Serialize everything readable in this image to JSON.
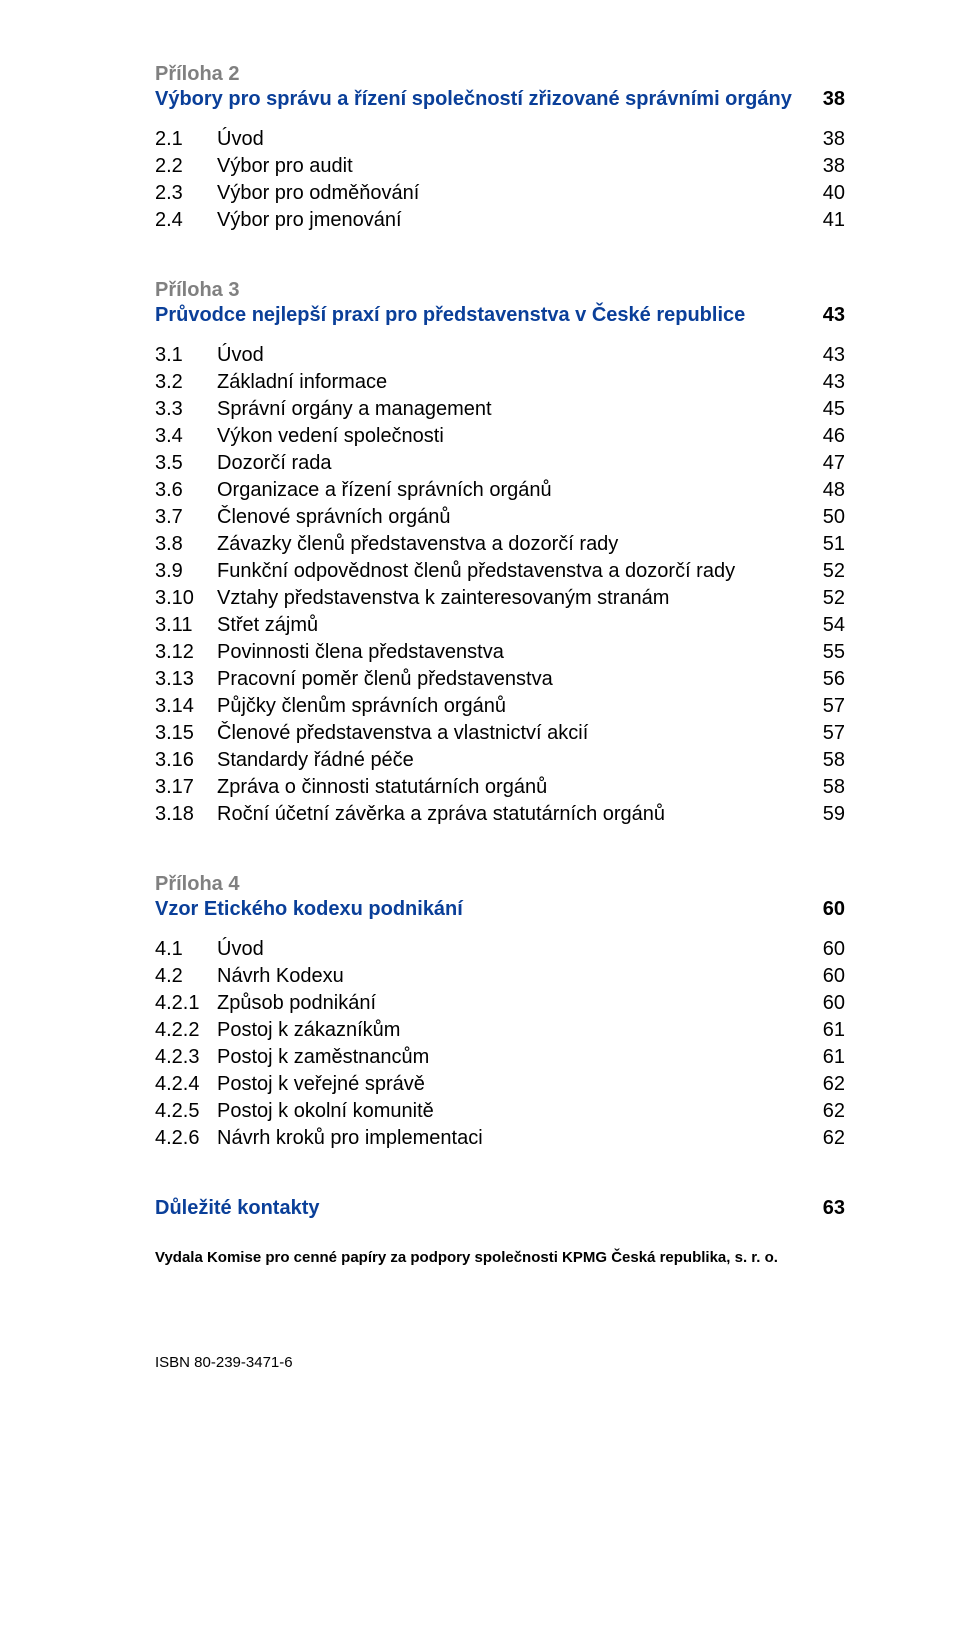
{
  "colors": {
    "heading_blue": "#0a3f99",
    "heading_grey": "#808080",
    "text_black": "#000000",
    "background": "#ffffff"
  },
  "typography": {
    "font_family": "Arial, Helvetica, sans-serif",
    "heading_fontsize_pt": 15,
    "body_fontsize_pt": 15,
    "footer_fontsize_pt": 11
  },
  "sections": [
    {
      "grey": "Příloha 2",
      "blue": "Výbory pro správu a řízení společností zřizované správními orgány",
      "page": "38",
      "items": [
        {
          "num": "2.1",
          "label": "Úvod",
          "page": "38"
        },
        {
          "num": "2.2",
          "label": "Výbor pro audit",
          "page": "38"
        },
        {
          "num": "2.3",
          "label": "Výbor pro odměňování",
          "page": "40"
        },
        {
          "num": "2.4",
          "label": "Výbor pro jmenování",
          "page": "41"
        }
      ]
    },
    {
      "grey": "Příloha 3",
      "blue": "Průvodce nejlepší praxí pro představenstva v České republice",
      "page": "43",
      "items": [
        {
          "num": "3.1",
          "label": "Úvod",
          "page": "43"
        },
        {
          "num": "3.2",
          "label": "Základní informace",
          "page": "43"
        },
        {
          "num": "3.3",
          "label": "Správní orgány a management",
          "page": "45"
        },
        {
          "num": "3.4",
          "label": "Výkon vedení společnosti",
          "page": "46"
        },
        {
          "num": "3.5",
          "label": "Dozorčí rada",
          "page": "47"
        },
        {
          "num": "3.6",
          "label": "Organizace a řízení správních orgánů",
          "page": "48"
        },
        {
          "num": "3.7",
          "label": "Členové správních orgánů",
          "page": "50"
        },
        {
          "num": "3.8",
          "label": "Závazky členů představenstva a dozorčí rady",
          "page": "51"
        },
        {
          "num": "3.9",
          "label": "Funkční odpovědnost členů představenstva a dozorčí rady",
          "page": "52"
        },
        {
          "num": "3.10",
          "label": "Vztahy představenstva k zainteresovaným stranám",
          "page": "52"
        },
        {
          "num": "3.11",
          "label": "Střet zájmů",
          "page": "54"
        },
        {
          "num": "3.12",
          "label": "Povinnosti člena představenstva",
          "page": "55"
        },
        {
          "num": "3.13",
          "label": "Pracovní poměr členů představenstva",
          "page": "56"
        },
        {
          "num": "3.14",
          "label": "Půjčky členům správních orgánů",
          "page": "57"
        },
        {
          "num": "3.15",
          "label": "Členové představenstva a vlastnictví akcií",
          "page": "57"
        },
        {
          "num": "3.16",
          "label": "Standardy řádné péče",
          "page": "58"
        },
        {
          "num": "3.17",
          "label": "Zpráva o činnosti statutárních orgánů",
          "page": "58"
        },
        {
          "num": "3.18",
          "label": "Roční účetní závěrka a zpráva statutárních orgánů",
          "page": "59"
        }
      ]
    },
    {
      "grey": "Příloha 4",
      "blue": "Vzor Etického kodexu podnikání",
      "page": "60",
      "items": [
        {
          "num": "4.1",
          "label": "Úvod",
          "page": "60"
        },
        {
          "num": "4.2",
          "label": "Návrh Kodexu",
          "page": "60"
        },
        {
          "num": "4.2.1",
          "label": "Způsob podnikání",
          "page": "60"
        },
        {
          "num": "4.2.2",
          "label": "Postoj k zákazníkům",
          "page": "61"
        },
        {
          "num": "4.2.3",
          "label": "Postoj k zaměstnancům",
          "page": "61"
        },
        {
          "num": "4.2.4",
          "label": "Postoj k veřejné správě",
          "page": "62"
        },
        {
          "num": "4.2.5",
          "label": "Postoj k okolní komunitě",
          "page": "62"
        },
        {
          "num": "4.2.6",
          "label": "Návrh kroků pro implementaci",
          "page": "62"
        }
      ]
    }
  ],
  "contacts": {
    "label": "Důležité kontakty",
    "page": "63"
  },
  "footer": "Vydala Komise pro cenné papíry za podpory společnosti KPMG Česká republika, s. r. o.",
  "isbn": "ISBN 80-239-3471-6"
}
